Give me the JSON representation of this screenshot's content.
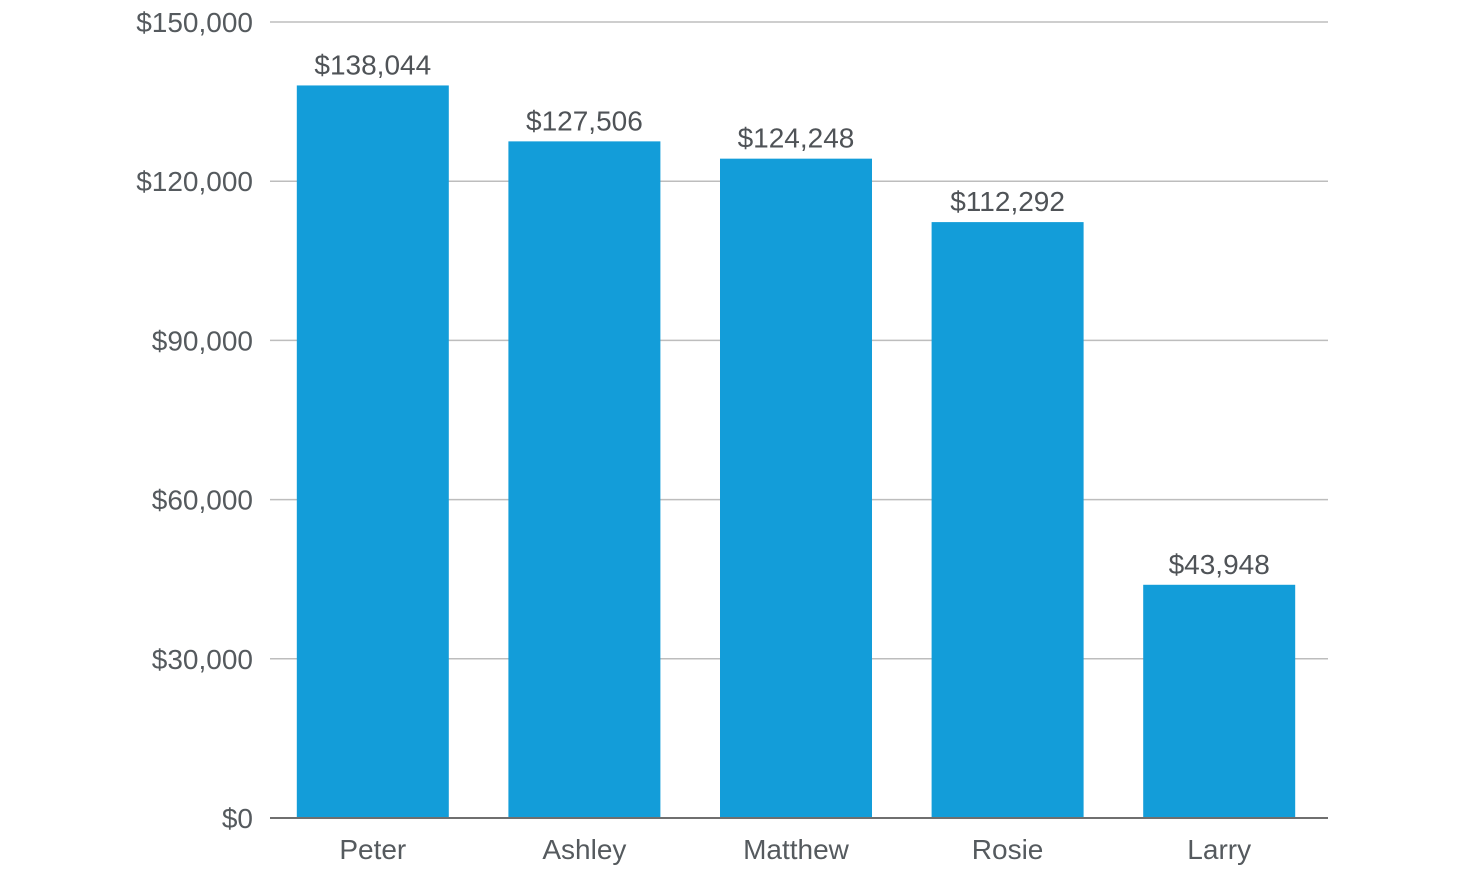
{
  "chart_data": {
    "type": "bar",
    "title": "",
    "xlabel": "",
    "ylabel": "",
    "categories": [
      "Peter",
      "Ashley",
      "Matthew",
      "Rosie",
      "Larry"
    ],
    "values": [
      138044,
      127506,
      124248,
      112292,
      43948
    ],
    "data_labels": [
      "$138,044",
      "$127,506",
      "$124,248",
      "$112,292",
      "$43,948"
    ],
    "ylim": [
      0,
      150000
    ],
    "yticks": [
      0,
      30000,
      60000,
      90000,
      120000,
      150000
    ],
    "ytick_labels": [
      "$0",
      "$30,000",
      "$60,000",
      "$90,000",
      "$120,000",
      "$150,000"
    ],
    "grid": true,
    "legend": "none",
    "bar_color": "#139dd9"
  }
}
